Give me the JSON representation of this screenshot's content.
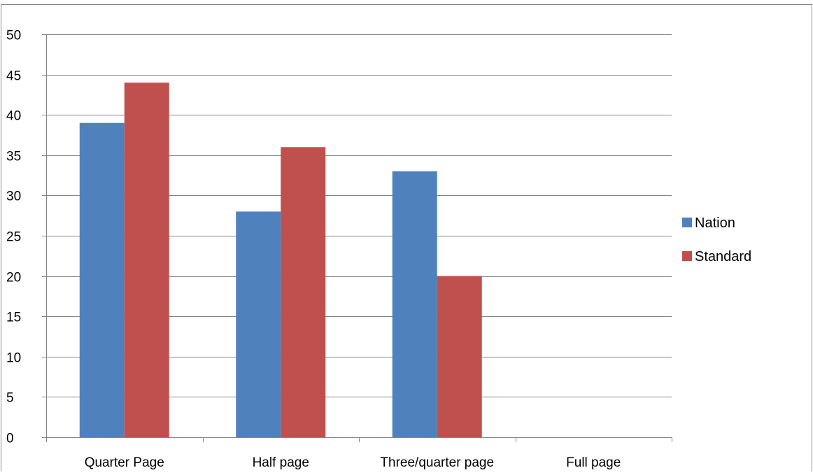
{
  "chart_data": {
    "type": "bar",
    "title": "",
    "xlabel": "",
    "ylabel": "",
    "categories": [
      "Quarter Page",
      "Half page",
      "Three/quarter page",
      "Full page"
    ],
    "series": [
      {
        "name": "Nation",
        "values": [
          39,
          28,
          33,
          0
        ],
        "color": "#4F81BD"
      },
      {
        "name": "Standard",
        "values": [
          44,
          36,
          20,
          0
        ],
        "color": "#C0504D"
      }
    ],
    "ylim": [
      0,
      50
    ],
    "yticks": [
      0,
      5,
      10,
      15,
      20,
      25,
      30,
      35,
      40,
      45,
      50
    ],
    "grid": true,
    "legend": "right"
  }
}
